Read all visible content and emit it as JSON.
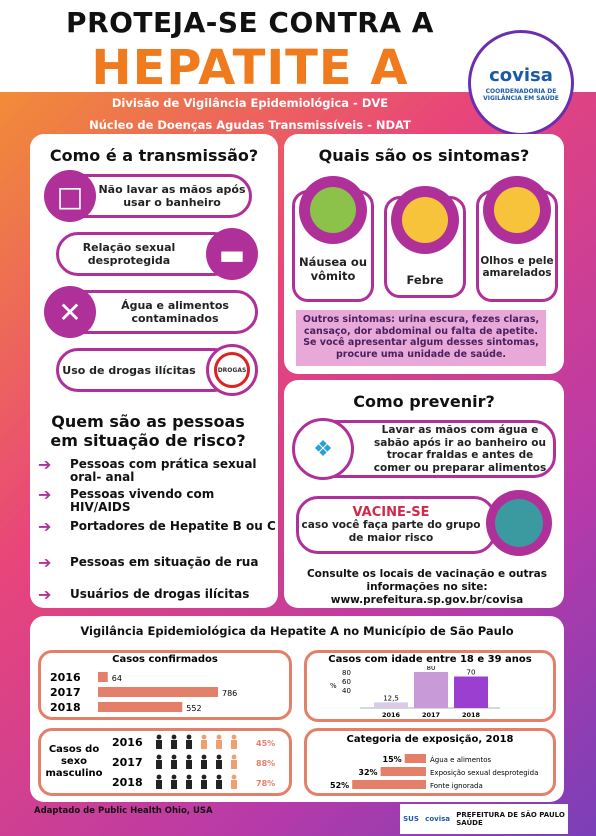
{
  "title": {
    "line1": "PROTEJA-SE CONTRA A",
    "line2": "HEPATITE A"
  },
  "logo": {
    "name": "covisa",
    "sub": "COORDENADORIA DE VIGILÂNCIA EM SAÚDE"
  },
  "subtitles": [
    "Divisão de Vigilância Epidemiológica - DVE",
    "Núcleo de Doenças Agudas Transmissíveis - NDAT"
  ],
  "transmission": {
    "heading": "Como é a transmissão?",
    "items": [
      "Não lavar as mãos após usar o banheiro",
      "Relação sexual desprotegida",
      "Água e alimentos contaminados",
      "Uso de drogas ilícitas"
    ],
    "drugs_label": "DROGAS"
  },
  "symptoms": {
    "heading": "Quais são os sintomas?",
    "items": [
      "Náusea ou vômito",
      "Febre",
      "Olhos e pele amarelados"
    ],
    "note": "Outros sintomas: urina escura, fezes claras, cansaço, dor abdominal ou falta de apetite. Se você apresentar algum desses sintomas, procure uma unidade de saúde."
  },
  "risk": {
    "heading": "Quem são as pessoas em situação de risco?",
    "items": [
      "Pessoas com prática sexual oral- anal",
      "Pessoas vivendo com HIV/AIDS",
      "Portadores de Hepatite B ou C",
      "Pessoas em situação de rua",
      "Usuários de drogas ilícitas"
    ]
  },
  "prevent": {
    "heading": "Como prevenir?",
    "wash": "Lavar as mãos com água e sabão após ir ao banheiro ou trocar fraldas e antes de comer ou preparar alimentos",
    "vaccine_title": "VACINE-SE",
    "vaccine_text": "caso você faça parte do grupo de maior risco",
    "consult": "Consulte os locais de vacinação e outras informações no site:",
    "site": "www.prefeitura.sp.gov.br/covisa"
  },
  "stats": {
    "heading": "Vigilância Epidemiológica da Hepatite A no Município de São Paulo",
    "confirmed": {
      "title": "Casos confirmados",
      "rows": [
        {
          "year": "2016",
          "value": 64
        },
        {
          "year": "2017",
          "value": 786
        },
        {
          "year": "2018",
          "value": 552
        }
      ]
    },
    "age": {
      "title": "Casos com idade entre 18 e 39 anos",
      "unit": "%",
      "ticks": [
        "80",
        "60",
        "40"
      ],
      "bars": [
        {
          "year": "2016",
          "value": 12.5,
          "label": "12,5"
        },
        {
          "year": "2017",
          "value": 80,
          "label": "80"
        },
        {
          "year": "2018",
          "value": 70,
          "label": "70"
        }
      ]
    },
    "male": {
      "title": "Casos do sexo masculino",
      "rows": [
        {
          "year": "2016",
          "pct": "45%",
          "value": 45
        },
        {
          "year": "2017",
          "pct": "88%",
          "value": 88
        },
        {
          "year": "2018",
          "pct": "78%",
          "value": 78
        }
      ]
    },
    "exposure": {
      "title": "Categoria de exposição, 2018",
      "rows": [
        {
          "pct": "15%",
          "value": 15,
          "label": "Água e alimentos"
        },
        {
          "pct": "32%",
          "value": 32,
          "label": "Exposição sexual desprotegida"
        },
        {
          "pct": "52%",
          "value": 52,
          "label": "Fonte ignorada"
        }
      ]
    }
  },
  "footer": {
    "credit": "Adaptado de Public Health Ohio, USA",
    "sus": "SUS",
    "covisa": "covisa",
    "prefeitura": "PREFEITURA DE SÃO PAULO",
    "saude": "SAÚDE"
  }
}
